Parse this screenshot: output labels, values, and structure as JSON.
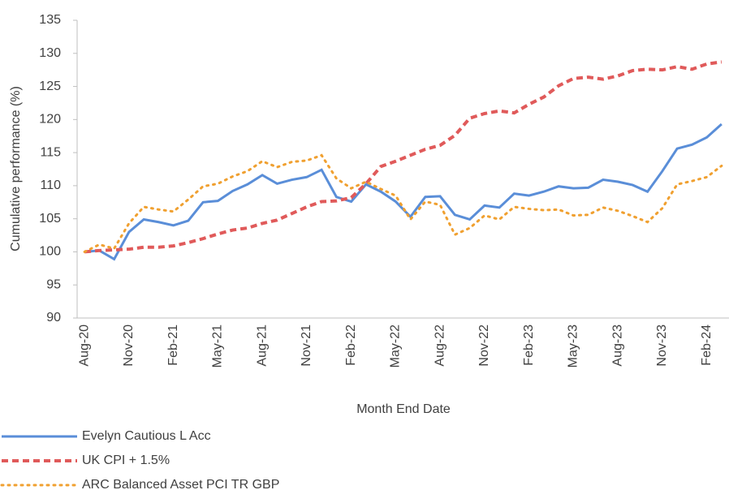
{
  "chart_data": {
    "type": "line",
    "x_label": "Month End Date",
    "y_label": "Cumulative performance (%)",
    "categories": [
      "Aug-20",
      null,
      null,
      "Nov-20",
      null,
      null,
      "Feb-21",
      null,
      null,
      "May-21",
      null,
      null,
      "Aug-21",
      null,
      null,
      "Nov-21",
      null,
      null,
      "Feb-22",
      null,
      null,
      "May-22",
      null,
      null,
      "Aug-22",
      null,
      null,
      "Nov-22",
      null,
      null,
      "Feb-23",
      null,
      null,
      "May-23",
      null,
      null,
      "Aug-23",
      null,
      null,
      "Nov-23",
      null,
      null,
      "Feb-24",
      null
    ],
    "series": [
      {
        "name": "Evelyn Cautious L Acc",
        "color": "#5a8ed8",
        "dash": "solid",
        "values": [
          100,
          100.2,
          98.9,
          103,
          104.9,
          104.5,
          104,
          104.7,
          107.5,
          107.7,
          109.2,
          110.2,
          111.6,
          110.3,
          110.9,
          111.3,
          112.4,
          108.3,
          107.6,
          110.2,
          109.1,
          107.6,
          105.3,
          108.3,
          108.4,
          105.6,
          104.9,
          107,
          106.7,
          108.8,
          108.5,
          109.1,
          109.9,
          109.6,
          109.7,
          110.9,
          110.6,
          110.1,
          109.1,
          112.2,
          115.6,
          116.2,
          117.3,
          119.3
        ]
      },
      {
        "name": "UK CPI + 1.5%",
        "color": "#e05a5a",
        "dash": "dashed",
        "values": [
          100,
          100.2,
          100.3,
          100.4,
          100.7,
          100.7,
          100.9,
          101.4,
          102,
          102.7,
          103.3,
          103.6,
          104.3,
          104.8,
          105.8,
          106.8,
          107.6,
          107.7,
          108.2,
          110.3,
          112.9,
          113.7,
          114.6,
          115.5,
          116.1,
          117.6,
          120.2,
          120.9,
          121.3,
          121,
          122.3,
          123.4,
          125.1,
          126.2,
          126.4,
          126.1,
          126.6,
          127.4,
          127.6,
          127.5,
          128,
          127.6,
          128.4,
          128.7
        ]
      },
      {
        "name": "ARC Balanced Asset PCI TR GBP",
        "color": "#f0a030",
        "dash": "dotted",
        "values": [
          100,
          101.1,
          100.5,
          104.3,
          106.8,
          106.4,
          106.1,
          107.9,
          109.9,
          110.3,
          111.4,
          112.2,
          113.7,
          112.8,
          113.6,
          113.8,
          114.6,
          111.1,
          109.6,
          110.6,
          109.5,
          108.5,
          104.9,
          107.6,
          107.1,
          102.6,
          103.6,
          105.5,
          104.9,
          106.8,
          106.5,
          106.3,
          106.4,
          105.5,
          105.6,
          106.7,
          106.2,
          105.4,
          104.5,
          106.6,
          110.2,
          110.7,
          111.3,
          113
        ]
      }
    ],
    "ylim": [
      90,
      135
    ],
    "yticks": [
      90,
      95,
      100,
      105,
      110,
      115,
      120,
      125,
      130,
      135
    ],
    "grid": false,
    "legend": "bottom"
  }
}
